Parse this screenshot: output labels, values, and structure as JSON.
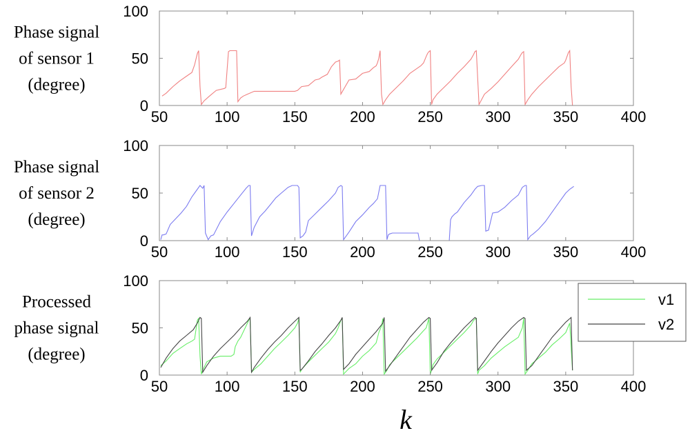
{
  "figure": {
    "xlabel": "k"
  },
  "chart_data": [
    {
      "type": "line",
      "ylabel": [
        "Phase signal",
        "of sensor 1",
        "(degree)"
      ],
      "xlim": [
        50,
        400
      ],
      "ylim": [
        0,
        100
      ],
      "xticks": [
        50,
        100,
        150,
        200,
        250,
        300,
        350,
        400
      ],
      "yticks": [
        0,
        50,
        100
      ],
      "series": [
        {
          "color": "#f08080",
          "x": [
            52,
            55,
            60,
            65,
            70,
            74,
            76,
            78,
            79,
            80,
            81,
            83,
            87,
            92,
            98,
            99,
            101,
            102,
            104,
            106,
            107,
            108,
            110,
            112,
            115,
            120,
            150,
            152,
            155,
            160,
            165,
            168,
            170,
            174,
            177,
            180,
            182,
            183,
            184,
            186,
            190,
            195,
            200,
            205,
            208,
            210,
            211,
            212,
            213,
            214,
            215,
            217,
            220,
            225,
            230,
            235,
            240,
            243,
            245,
            247,
            248,
            249,
            250,
            251,
            252,
            255,
            260,
            265,
            270,
            275,
            280,
            282,
            283,
            284,
            286,
            290,
            295,
            300,
            305,
            310,
            315,
            317,
            318,
            319,
            320,
            322,
            325,
            330,
            335,
            340,
            345,
            349,
            350,
            351,
            352,
            353,
            354,
            355
          ],
          "y": [
            10,
            13,
            20,
            26,
            31,
            35,
            43,
            55,
            58,
            20,
            1,
            5,
            10,
            16,
            18,
            19,
            57,
            58,
            58,
            58,
            58,
            4,
            8,
            10,
            12,
            15,
            15,
            16,
            20,
            21,
            27,
            28,
            30,
            33,
            41,
            46,
            47,
            48,
            12,
            17,
            27,
            28,
            34,
            36,
            40,
            42,
            45,
            50,
            58,
            12,
            1,
            6,
            12,
            19,
            26,
            34,
            39,
            42,
            45,
            52,
            55,
            57,
            58,
            1,
            6,
            12,
            19,
            26,
            34,
            41,
            49,
            54,
            57,
            58,
            1,
            12,
            18,
            25,
            33,
            41,
            49,
            54,
            56,
            57,
            1,
            6,
            12,
            20,
            27,
            34,
            41,
            45,
            48,
            52,
            56,
            58,
            20,
            0
          ]
        }
      ]
    },
    {
      "type": "line",
      "ylabel": [
        "Phase signal",
        "of sensor 2",
        "(degree)"
      ],
      "xlim": [
        50,
        400
      ],
      "ylim": [
        0,
        100
      ],
      "xticks": [
        50,
        100,
        150,
        200,
        250,
        300,
        350,
        400
      ],
      "yticks": [
        0,
        50,
        100
      ],
      "series": [
        {
          "color": "#7b7bf0",
          "x": [
            51,
            52,
            53,
            55,
            58,
            62,
            66,
            70,
            74,
            78,
            80,
            82,
            83,
            84,
            86,
            88,
            90,
            95,
            100,
            105,
            110,
            114,
            116,
            117,
            118,
            120,
            124,
            128,
            132,
            136,
            140,
            145,
            148,
            150,
            152,
            153,
            154,
            156,
            158,
            160,
            165,
            170,
            175,
            180,
            182,
            184,
            185,
            186,
            188,
            190,
            195,
            200,
            205,
            208,
            211,
            213,
            215,
            216,
            217,
            218,
            219,
            220,
            222,
            225,
            230,
            235,
            240,
            241,
            242,
            245,
            250,
            255,
            260,
            263,
            264,
            265,
            266,
            268,
            270,
            275,
            280,
            283,
            285,
            288,
            289,
            290,
            291,
            293,
            296,
            300,
            305,
            310,
            315,
            318,
            320,
            321,
            322,
            324,
            326,
            330,
            335,
            340,
            345,
            350,
            353,
            355,
            356
          ],
          "y": [
            1,
            6,
            6,
            7,
            17,
            23,
            29,
            36,
            46,
            54,
            58,
            55,
            58,
            8,
            1,
            5,
            6,
            20,
            30,
            39,
            48,
            55,
            58,
            58,
            5,
            14,
            25,
            31,
            38,
            45,
            50,
            56,
            58,
            58,
            58,
            56,
            3,
            5,
            9,
            21,
            28,
            35,
            42,
            50,
            56,
            58,
            57,
            1,
            5,
            9,
            20,
            27,
            35,
            39,
            44,
            58,
            58,
            58,
            58,
            1,
            6,
            7,
            8,
            8,
            8,
            8,
            8,
            8,
            0,
            0,
            0,
            0,
            0,
            0,
            0,
            22,
            25,
            28,
            30,
            40,
            48,
            54,
            57,
            58,
            58,
            58,
            10,
            11,
            29,
            30,
            35,
            42,
            48,
            56,
            58,
            58,
            1,
            5,
            7,
            12,
            20,
            30,
            40,
            50,
            54,
            56,
            57
          ]
        }
      ]
    },
    {
      "type": "line",
      "ylabel": [
        "Processed",
        "phase signal",
        "(degree)"
      ],
      "xlim": [
        50,
        400
      ],
      "ylim": [
        0,
        100
      ],
      "xticks": [
        50,
        100,
        150,
        200,
        250,
        300,
        350,
        400
      ],
      "yticks": [
        0,
        50,
        100
      ],
      "legend": {
        "position": "right",
        "items": [
          "v1",
          "v2"
        ]
      },
      "series": [
        {
          "name": "v1",
          "color": "#66ee66",
          "x": [
            51,
            55,
            60,
            65,
            70,
            74,
            76,
            78,
            79,
            80,
            81,
            82,
            85,
            90,
            95,
            100,
            103,
            105,
            106,
            108,
            110,
            115,
            116,
            117,
            118,
            120,
            125,
            130,
            135,
            140,
            145,
            150,
            152,
            153,
            154,
            155,
            160,
            165,
            170,
            175,
            180,
            182,
            184,
            185,
            186,
            190,
            195,
            200,
            205,
            210,
            212,
            214,
            215,
            216,
            218,
            220,
            225,
            230,
            235,
            240,
            245,
            247,
            249,
            250,
            251,
            252,
            255,
            260,
            265,
            270,
            275,
            280,
            282,
            284,
            285,
            286,
            290,
            295,
            300,
            305,
            310,
            315,
            318,
            319,
            320,
            322,
            325,
            330,
            335,
            340,
            345,
            350,
            353,
            355
          ],
          "y": [
            10,
            15,
            23,
            28,
            33,
            36,
            38,
            58,
            60,
            20,
            1,
            5,
            14,
            18,
            20,
            20,
            20,
            22,
            30,
            36,
            40,
            55,
            58,
            60,
            3,
            6,
            12,
            20,
            28,
            35,
            42,
            50,
            55,
            60,
            3,
            6,
            14,
            21,
            28,
            35,
            44,
            50,
            58,
            60,
            1,
            7,
            12,
            20,
            26,
            34,
            45,
            52,
            60,
            1,
            5,
            11,
            18,
            25,
            32,
            39,
            47,
            50,
            60,
            1,
            5,
            11,
            17,
            24,
            31,
            38,
            45,
            53,
            58,
            60,
            1,
            5,
            10,
            18,
            24,
            30,
            35,
            40,
            50,
            60,
            1,
            5,
            12,
            18,
            24,
            32,
            38,
            45,
            55,
            5
          ]
        },
        {
          "name": "v2",
          "color": "#444444",
          "x": [
            51,
            55,
            60,
            65,
            70,
            75,
            78,
            80,
            81,
            82,
            85,
            90,
            95,
            100,
            105,
            110,
            115,
            117,
            118,
            120,
            125,
            130,
            135,
            140,
            145,
            150,
            153,
            154,
            155,
            160,
            165,
            170,
            175,
            180,
            184,
            185,
            186,
            190,
            195,
            200,
            205,
            210,
            215,
            216,
            217,
            220,
            225,
            230,
            235,
            240,
            245,
            249,
            250,
            251,
            255,
            260,
            265,
            270,
            275,
            280,
            283,
            284,
            285,
            290,
            295,
            300,
            305,
            310,
            315,
            319,
            320,
            321,
            325,
            330,
            335,
            340,
            345,
            350,
            354,
            355
          ],
          "y": [
            8,
            18,
            28,
            36,
            42,
            48,
            55,
            61,
            60,
            3,
            10,
            20,
            28,
            35,
            42,
            50,
            57,
            61,
            3,
            8,
            18,
            27,
            35,
            42,
            50,
            57,
            61,
            5,
            6,
            15,
            25,
            33,
            42,
            50,
            58,
            61,
            6,
            12,
            22,
            30,
            38,
            46,
            55,
            61,
            4,
            10,
            20,
            30,
            40,
            48,
            56,
            61,
            60,
            5,
            13,
            25,
            34,
            42,
            50,
            57,
            61,
            60,
            5,
            15,
            25,
            34,
            42,
            50,
            57,
            61,
            60,
            5,
            10,
            20,
            30,
            40,
            48,
            56,
            61,
            5
          ]
        }
      ]
    }
  ]
}
